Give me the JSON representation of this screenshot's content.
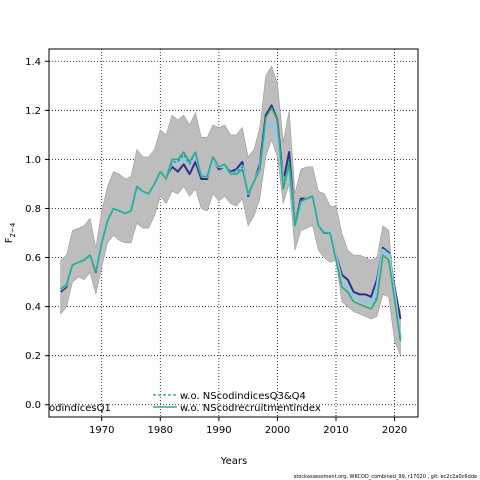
{
  "chart_data": {
    "type": "line",
    "ylabel": "F",
    "ylabel_sub": "2−4",
    "xlabel": "Years",
    "xlim": [
      1961,
      2024
    ],
    "ylim": [
      -0.05,
      1.45
    ],
    "xticks": [
      1970,
      1980,
      1990,
      2000,
      2010,
      2020
    ],
    "xtick_labels": [
      "1970",
      "1980",
      "1990",
      "2000",
      "2010",
      "2020"
    ],
    "yticks": [
      0.0,
      0.2,
      0.4,
      0.6,
      0.8,
      1.0,
      1.2,
      1.4
    ],
    "ytick_labels": [
      "0.0",
      "0.2",
      "0.4",
      "0.6",
      "0.8",
      "1.0",
      "1.2",
      "1.4"
    ],
    "grid": true,
    "legend_placement": "bottom",
    "x": [
      1963,
      1964,
      1965,
      1966,
      1967,
      1968,
      1969,
      1970,
      1971,
      1972,
      1973,
      1974,
      1975,
      1976,
      1977,
      1978,
      1979,
      1980,
      1981,
      1982,
      1983,
      1984,
      1985,
      1986,
      1987,
      1988,
      1989,
      1990,
      1991,
      1992,
      1993,
      1994,
      1995,
      1996,
      1997,
      1998,
      1999,
      2000,
      2001,
      2002,
      2003,
      2004,
      2005,
      2006,
      2007,
      2008,
      2009,
      2010,
      2011,
      2012,
      2013,
      2014,
      2015,
      2016,
      2017,
      2018,
      2019,
      2020,
      2021
    ],
    "band": {
      "color": "#bdbdbd",
      "upper": [
        0.59,
        0.61,
        0.71,
        0.72,
        0.73,
        0.76,
        0.64,
        0.79,
        0.89,
        0.95,
        0.94,
        0.92,
        0.93,
        1.04,
        1.01,
        1.01,
        1.04,
        1.12,
        1.1,
        1.18,
        1.16,
        1.18,
        1.14,
        1.19,
        1.09,
        1.09,
        1.14,
        1.13,
        1.14,
        1.1,
        1.1,
        1.13,
        1.01,
        1.04,
        1.13,
        1.34,
        1.38,
        1.31,
        1.07,
        1.2,
        0.86,
        0.96,
        0.97,
        0.97,
        0.87,
        0.86,
        0.81,
        0.81,
        0.7,
        0.63,
        0.61,
        0.61,
        0.6,
        0.59,
        0.6,
        0.73,
        0.71,
        0.45,
        0.38
      ],
      "lower": [
        0.37,
        0.4,
        0.5,
        0.52,
        0.51,
        0.54,
        0.45,
        0.56,
        0.66,
        0.69,
        0.67,
        0.66,
        0.66,
        0.74,
        0.72,
        0.72,
        0.77,
        0.85,
        0.82,
        0.87,
        0.86,
        0.89,
        0.85,
        0.88,
        0.8,
        0.79,
        0.86,
        0.83,
        0.85,
        0.82,
        0.81,
        0.84,
        0.73,
        0.77,
        0.84,
        1.01,
        1.08,
        1.01,
        0.82,
        0.9,
        0.63,
        0.71,
        0.72,
        0.73,
        0.63,
        0.6,
        0.58,
        0.59,
        0.42,
        0.4,
        0.38,
        0.37,
        0.36,
        0.35,
        0.36,
        0.45,
        0.44,
        0.26,
        0.2
      ]
    },
    "series": [
      {
        "name": "",
        "color": "#2b2f8a",
        "width": 2.0,
        "values": [
          0.46,
          0.48,
          0.57,
          0.58,
          0.59,
          0.61,
          0.54,
          0.66,
          0.75,
          0.8,
          0.79,
          0.78,
          0.79,
          0.88,
          0.86,
          0.86,
          0.9,
          0.95,
          0.93,
          0.97,
          0.95,
          0.98,
          0.94,
          0.99,
          0.92,
          0.92,
          1.0,
          0.96,
          0.97,
          0.95,
          0.96,
          0.99,
          0.85,
          0.91,
          0.98,
          1.18,
          1.22,
          1.16,
          0.91,
          1.03,
          0.74,
          0.84,
          0.84,
          0.85,
          0.73,
          0.7,
          0.7,
          0.61,
          0.53,
          0.51,
          0.46,
          0.45,
          0.45,
          0.44,
          0.51,
          0.64,
          0.62,
          0.48,
          0.35
        ]
      },
      {
        "name": "",
        "color": "#8ec8e8",
        "width": 3.0,
        "values": [
          0.47,
          0.49,
          0.57,
          0.58,
          0.59,
          0.61,
          0.55,
          0.66,
          0.75,
          0.8,
          0.79,
          0.78,
          0.79,
          0.88,
          0.86,
          0.86,
          0.9,
          0.95,
          0.93,
          0.99,
          0.99,
          1.01,
          0.98,
          1.02,
          0.94,
          0.93,
          1.0,
          0.97,
          0.97,
          0.94,
          0.95,
          0.97,
          0.86,
          0.91,
          0.96,
          1.12,
          1.15,
          1.09,
          0.9,
          0.96,
          0.73,
          0.82,
          0.84,
          0.85,
          0.73,
          0.71,
          0.7,
          0.6,
          0.5,
          0.48,
          0.44,
          0.43,
          0.42,
          0.41,
          0.48,
          0.63,
          0.61,
          0.45,
          0.27
        ]
      },
      {
        "name": "w.o. NScodindicesQ3&Q4",
        "color": "#2a8f9f",
        "width": 1.3,
        "dashed": true,
        "values": [
          0.47,
          0.49,
          0.57,
          0.58,
          0.59,
          0.61,
          0.54,
          0.66,
          0.75,
          0.8,
          0.79,
          0.78,
          0.79,
          0.89,
          0.87,
          0.86,
          0.9,
          0.95,
          0.92,
          0.99,
          0.99,
          1.02,
          0.98,
          1.03,
          0.93,
          0.93,
          1.01,
          0.97,
          0.98,
          0.95,
          0.95,
          0.97,
          0.86,
          0.91,
          0.96,
          1.17,
          1.21,
          1.16,
          0.89,
          1.0,
          0.74,
          0.83,
          0.84,
          0.85,
          0.73,
          0.7,
          0.7,
          0.59,
          0.48,
          0.46,
          0.42,
          0.41,
          0.4,
          0.39,
          0.44,
          0.61,
          0.59,
          0.43,
          0.26
        ]
      },
      {
        "name": "w.o. NScodrecruitmentindex",
        "color": "#3aa67a",
        "width": 1.6,
        "values": [
          0.47,
          0.49,
          0.57,
          0.58,
          0.59,
          0.61,
          0.54,
          0.66,
          0.75,
          0.8,
          0.79,
          0.78,
          0.79,
          0.89,
          0.87,
          0.86,
          0.9,
          0.95,
          0.92,
          1.0,
          1.0,
          1.03,
          0.99,
          1.03,
          0.93,
          0.93,
          1.01,
          0.97,
          0.98,
          0.94,
          0.94,
          0.96,
          0.86,
          0.91,
          0.96,
          1.17,
          1.21,
          1.16,
          0.88,
          0.98,
          0.73,
          0.83,
          0.84,
          0.85,
          0.73,
          0.7,
          0.7,
          0.59,
          0.48,
          0.46,
          0.42,
          0.41,
          0.4,
          0.39,
          0.43,
          0.61,
          0.59,
          0.43,
          0.26
        ]
      }
    ]
  },
  "legend": {
    "left_partial_label": "odindicesQ1",
    "items": [
      {
        "label": "w.o. NScodindicesQ3&Q4",
        "color": "#2a8f9f",
        "dashed": true
      },
      {
        "label": "w.o. NScodrecruitmentindex",
        "color": "#3aa67a",
        "dashed": false
      }
    ]
  },
  "footer": "stockassessment.org, WKCOD_combined_99, r17020 , git: ec2c2a0c6dde"
}
